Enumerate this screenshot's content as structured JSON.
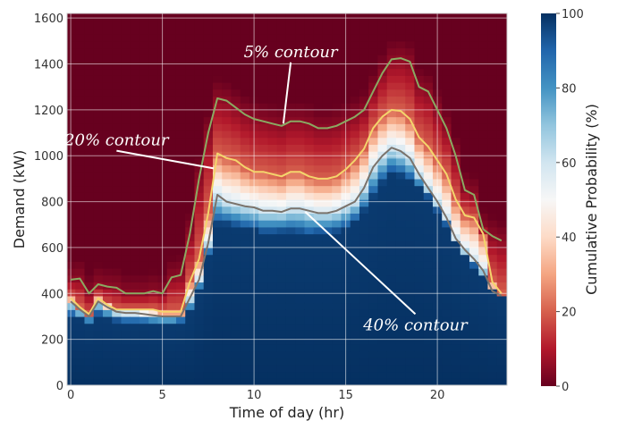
{
  "chart_data": {
    "type": "heatmap",
    "title": "",
    "xlabel": "Time of day (hr)",
    "ylabel": "Demand (kW)",
    "xlim": [
      -0.2,
      23.8
    ],
    "ylim": [
      0,
      1620
    ],
    "x_ticks": [
      0,
      5,
      10,
      15,
      20
    ],
    "y_ticks": [
      0,
      200,
      400,
      600,
      800,
      1000,
      1200,
      1400,
      1600
    ],
    "grid": true,
    "colorbar": {
      "label": "Cumulative Probability (%)",
      "range": [
        0,
        100
      ],
      "ticks": [
        0,
        20,
        40,
        60,
        80,
        100
      ],
      "colormap": "RdBu",
      "colors": [
        "#67001f",
        "#b2182b",
        "#d6604d",
        "#f4a582",
        "#fddbc7",
        "#f7f7f7",
        "#d1e5f0",
        "#92c5de",
        "#4393c3",
        "#2166ac",
        "#053061"
      ]
    },
    "hours": [
      0,
      0.5,
      1,
      1.5,
      2,
      2.5,
      3,
      3.5,
      4,
      4.5,
      5,
      5.5,
      6,
      6.5,
      7,
      7.5,
      8,
      8.5,
      9,
      9.5,
      10,
      10.5,
      11,
      11.5,
      12,
      12.5,
      13,
      13.5,
      14,
      14.5,
      15,
      15.5,
      16,
      16.5,
      17,
      17.5,
      18,
      18.5,
      19,
      19.5,
      20,
      20.5,
      21,
      21.5,
      22,
      22.5,
      23,
      23.5
    ],
    "base_demand": [
      300,
      290,
      275,
      305,
      290,
      280,
      275,
      275,
      275,
      270,
      270,
      270,
      280,
      320,
      420,
      570,
      700,
      700,
      690,
      680,
      675,
      660,
      660,
      665,
      665,
      660,
      650,
      660,
      660,
      665,
      680,
      710,
      760,
      820,
      880,
      920,
      910,
      890,
      860,
      820,
      760,
      700,
      620,
      560,
      520,
      480,
      420,
      390
    ],
    "series": [
      {
        "name": "5% contour",
        "color": "#8aaa62",
        "values": [
          460,
          465,
          400,
          440,
          430,
          425,
          400,
          400,
          400,
          410,
          400,
          470,
          480,
          660,
          900,
          1100,
          1250,
          1240,
          1210,
          1180,
          1160,
          1150,
          1140,
          1130,
          1150,
          1150,
          1140,
          1120,
          1120,
          1130,
          1150,
          1170,
          1200,
          1280,
          1360,
          1420,
          1425,
          1410,
          1300,
          1280,
          1200,
          1120,
          1000,
          850,
          830,
          680,
          650,
          630
        ]
      },
      {
        "name": "20% contour",
        "color": "#f4d56c",
        "values": [
          380,
          340,
          310,
          380,
          350,
          330,
          330,
          330,
          330,
          330,
          320,
          320,
          320,
          450,
          550,
          750,
          1010,
          990,
          980,
          950,
          930,
          930,
          920,
          910,
          930,
          930,
          910,
          900,
          900,
          910,
          940,
          980,
          1030,
          1120,
          1170,
          1200,
          1195,
          1160,
          1080,
          1040,
          980,
          920,
          810,
          740,
          730,
          660,
          450,
          400
        ]
      },
      {
        "name": "40% contour",
        "color": "#7a736c",
        "values": [
          365,
          330,
          300,
          365,
          340,
          320,
          315,
          315,
          310,
          305,
          300,
          300,
          300,
          380,
          460,
          620,
          830,
          800,
          790,
          780,
          775,
          760,
          760,
          755,
          770,
          770,
          760,
          750,
          750,
          760,
          780,
          800,
          860,
          950,
          1000,
          1035,
          1020,
          990,
          920,
          860,
          800,
          730,
          640,
          590,
          550,
          500,
          410,
          390
        ]
      }
    ],
    "annotations": [
      {
        "text": "5% contour",
        "x": 12.0,
        "y": 1430,
        "target_x": 11.6,
        "target_y": 1140
      },
      {
        "text": "20% contour",
        "x": 2.5,
        "y": 1045,
        "target_x": 7.8,
        "target_y": 945
      },
      {
        "text": "40% contour",
        "x": 18.8,
        "y": 240,
        "target_x": 12.8,
        "target_y": 755
      }
    ]
  }
}
